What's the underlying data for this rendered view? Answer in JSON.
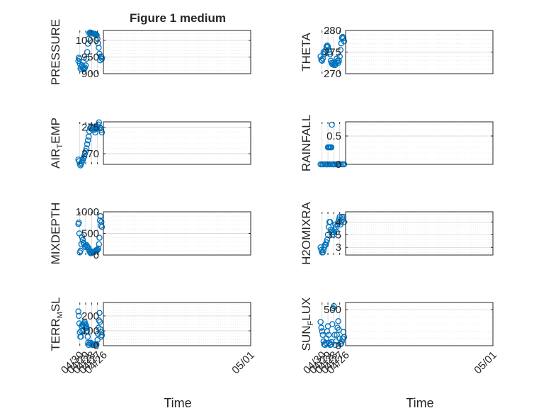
{
  "figure": {
    "title": "Figure 1 medium",
    "bottom_xlabel_left": "Time",
    "bottom_xlabel_right": "Time",
    "marker_color": "#0072BD",
    "date_ticks": [
      "04/26",
      "04/27",
      "04/28",
      "04/29",
      "04/30",
      "05/01"
    ]
  },
  "chart_data": [
    {
      "type": "scatter",
      "id": "pressure",
      "ylabel": "PRESSURE",
      "ylim": [
        900,
        1030
      ],
      "yticks": [
        900,
        950,
        1000
      ],
      "xlim": [
        "04/26",
        "05/01"
      ],
      "grid": true,
      "x": [
        "04/26 06:00",
        "04/26 08:00",
        "04/26 10:00",
        "04/26 13:00",
        "04/26 16:00",
        "04/26 19:00",
        "04/26 22:00",
        "04/27 00:00",
        "04/27 03:00",
        "04/27 06:00",
        "04/27 09:00",
        "04/27 12:00",
        "04/27 15:00",
        "04/27 18:00",
        "04/27 21:00",
        "04/28 00:00",
        "04/28 03:00",
        "04/28 06:00",
        "04/28 09:00",
        "04/28 12:00",
        "04/28 15:00",
        "04/28 18:00",
        "04/28 21:00",
        "04/29 00:00",
        "04/29 03:00",
        "04/29 06:00",
        "04/29 09:00",
        "04/29 12:00",
        "04/29 15:00",
        "04/29 18:00",
        "04/29 21:00",
        "04/30 00:00",
        "04/30 02:00",
        "04/30 04:00",
        "04/30 06:00"
      ],
      "y": [
        945,
        950,
        952,
        940,
        960,
        978,
        992,
        1005,
        1015,
        1018,
        1019,
        1020,
        1020,
        1021,
        1021,
        1022,
        1023,
        1024,
        1022,
        1005,
        990,
        965,
        945,
        925,
        918,
        915,
        913,
        918,
        925,
        920,
        915,
        930,
        944,
        948,
        938
      ]
    },
    {
      "type": "scatter",
      "id": "theta",
      "ylabel": "THETA",
      "ylim": [
        270,
        280
      ],
      "yticks": [
        270,
        275,
        280
      ],
      "xlim": [
        "04/26",
        "05/01"
      ],
      "grid": true,
      "x": [
        "04/26 06:00",
        "04/26 09:00",
        "04/26 12:00",
        "04/26 15:00",
        "04/26 18:00",
        "04/26 21:00",
        "04/27 00:00",
        "04/27 03:00",
        "04/27 06:00",
        "04/27 09:00",
        "04/27 12:00",
        "04/27 15:00",
        "04/27 18:00",
        "04/27 21:00",
        "04/28 00:00",
        "04/28 03:00",
        "04/28 06:00",
        "04/28 09:00",
        "04/28 12:00",
        "04/28 15:00",
        "04/28 18:00",
        "04/28 21:00",
        "04/29 00:00",
        "04/29 03:00",
        "04/29 06:00",
        "04/29 09:00",
        "04/29 12:00",
        "04/29 15:00",
        "04/29 18:00",
        "04/29 21:00",
        "04/30 00:00",
        "04/30 03:00",
        "04/30 06:00"
      ],
      "y": [
        277.5,
        278.2,
        278.5,
        278.3,
        277.0,
        275.5,
        274.0,
        273.0,
        272.5,
        273.0,
        273.5,
        272.5,
        272.0,
        272.2,
        272.0,
        272.5,
        272.2,
        272.5,
        273.0,
        274.5,
        275.0,
        275.5,
        276.3,
        276.5,
        276.2,
        275.5,
        275.0,
        274.5,
        275.0,
        273.5,
        273.0,
        273.2,
        274.0
      ]
    },
    {
      "type": "scatter",
      "id": "air_temp",
      "ylabel": "AIR_TEMP",
      "ylim": [
        268,
        276
      ],
      "yticks": [
        270,
        275
      ],
      "xlim": [
        "04/26",
        "05/01"
      ],
      "grid": true,
      "x": [
        "04/26 06:00",
        "04/26 09:00",
        "04/26 12:00",
        "04/26 15:00",
        "04/26 18:00",
        "04/26 21:00",
        "04/27 00:00",
        "04/27 03:00",
        "04/27 06:00",
        "04/27 09:00",
        "04/27 12:00",
        "04/27 15:00",
        "04/27 18:00",
        "04/27 21:00",
        "04/28 00:00",
        "04/28 03:00",
        "04/28 06:00",
        "04/28 09:00",
        "04/28 12:00",
        "04/28 15:00",
        "04/28 18:00",
        "04/28 21:00",
        "04/29 00:00",
        "04/29 03:00",
        "04/29 06:00",
        "04/29 09:00",
        "04/29 12:00",
        "04/29 15:00",
        "04/29 18:00",
        "04/29 21:00",
        "04/30 00:00",
        "04/30 03:00",
        "04/30 06:00"
      ],
      "y": [
        274.0,
        274.5,
        274.8,
        275.0,
        275.9,
        275.5,
        275.0,
        274.8,
        274.7,
        274.0,
        274.5,
        275.0,
        274.8,
        274.5,
        275.0,
        275.0,
        274.8,
        274.2,
        273.2,
        272.5,
        271.8,
        271.0,
        270.5,
        270.0,
        269.5,
        269.2,
        268.8,
        268.5,
        268.2,
        267.8,
        268.0,
        268.6,
        268.9
      ]
    },
    {
      "type": "scatter",
      "id": "rainfall",
      "ylabel": "RAINFALL",
      "ylim": [
        0,
        0.75
      ],
      "yticks": [
        0,
        0.5
      ],
      "xlim": [
        "04/26",
        "05/01"
      ],
      "grid": true,
      "x": [
        "04/26 06:00",
        "04/26 12:00",
        "04/26 18:00",
        "04/27 00:00",
        "04/27 06:00",
        "04/27 12:00",
        "04/27 18:00",
        "04/28 00:00",
        "04/28 03:00",
        "04/28 06:00",
        "04/28 08:00",
        "04/28 10:00",
        "04/28 12:00",
        "04/28 14:00",
        "04/28 16:00",
        "04/28 18:00",
        "04/28 20:00",
        "04/28 22:00",
        "04/29 00:00",
        "04/29 02:00",
        "04/29 04:00",
        "04/29 08:00",
        "04/29 14:00",
        "04/29 20:00",
        "04/30 00:00",
        "04/30 06:00"
      ],
      "y": [
        0,
        0,
        0,
        0,
        0,
        0,
        0,
        0,
        0,
        0,
        0.7,
        0.3,
        0.3,
        0.3,
        0,
        0.3,
        0,
        0.3,
        0.3,
        0,
        0,
        0,
        0,
        0,
        0,
        0
      ]
    },
    {
      "type": "scatter",
      "id": "mixdepth",
      "ylabel": "MIXDEPTH",
      "ylim": [
        0,
        1000
      ],
      "yticks": [
        0,
        500,
        1000
      ],
      "xlim": [
        "04/26",
        "05/01"
      ],
      "grid": true,
      "x": [
        "04/26 06:00",
        "04/26 08:00",
        "04/26 10:00",
        "04/26 12:00",
        "04/26 14:00",
        "04/26 16:00",
        "04/26 18:00",
        "04/26 21:00",
        "04/27 00:00",
        "04/27 03:00",
        "04/27 06:00",
        "04/27 09:00",
        "04/27 12:00",
        "04/27 15:00",
        "04/27 18:00",
        "04/27 21:00",
        "04/28 00:00",
        "04/28 03:00",
        "04/28 06:00",
        "04/28 09:00",
        "04/28 12:00",
        "04/28 15:00",
        "04/28 18:00",
        "04/28 21:00",
        "04/29 00:00",
        "04/29 03:00",
        "04/29 06:00",
        "04/29 09:00",
        "04/29 12:00",
        "04/29 15:00",
        "04/29 18:00",
        "04/29 21:00",
        "04/30 00:00",
        "04/30 02:00",
        "04/30 04:00",
        "04/30 06:00"
      ],
      "y": [
        650,
        760,
        680,
        900,
        800,
        400,
        250,
        150,
        120,
        100,
        110,
        90,
        80,
        60,
        70,
        80,
        50,
        40,
        60,
        90,
        150,
        180,
        200,
        230,
        180,
        200,
        250,
        280,
        350,
        420,
        250,
        100,
        60,
        500,
        750,
        720
      ]
    },
    {
      "type": "scatter",
      "id": "h2omixra",
      "ylabel": "H2OMIXRA",
      "ylim": [
        2.7,
        4.4
      ],
      "yticks": [
        3,
        3.5,
        4
      ],
      "xlim": [
        "04/26",
        "05/01"
      ],
      "grid": true,
      "x": [
        "04/26 06:00",
        "04/26 09:00",
        "04/26 12:00",
        "04/26 15:00",
        "04/26 18:00",
        "04/26 21:00",
        "04/27 00:00",
        "04/27 03:00",
        "04/27 06:00",
        "04/27 09:00",
        "04/27 12:00",
        "04/27 15:00",
        "04/27 18:00",
        "04/27 21:00",
        "04/28 00:00",
        "04/28 03:00",
        "04/28 06:00",
        "04/28 09:00",
        "04/28 12:00",
        "04/28 15:00",
        "04/28 18:00",
        "04/28 21:00",
        "04/29 00:00",
        "04/29 03:00",
        "04/29 06:00",
        "04/29 09:00",
        "04/29 12:00",
        "04/29 15:00",
        "04/29 18:00",
        "04/29 21:00",
        "04/30 00:00",
        "04/30 03:00",
        "04/30 06:00"
      ],
      "y": [
        4.0,
        4.2,
        4.1,
        4.2,
        4.0,
        3.9,
        4.2,
        4.1,
        4.0,
        3.9,
        3.6,
        3.8,
        3.9,
        3.7,
        3.5,
        3.6,
        3.5,
        3.6,
        3.7,
        4.0,
        4.0,
        3.8,
        3.5,
        3.3,
        3.2,
        3.1,
        3.1,
        3.0,
        2.9,
        2.8,
        2.8,
        2.9,
        3.0
      ]
    },
    {
      "type": "scatter",
      "id": "terr_msl",
      "ylabel": "TERR_MSL",
      "ylim": [
        0,
        290
      ],
      "yticks": [
        0,
        100,
        200
      ],
      "xlim": [
        "04/26",
        "05/01"
      ],
      "grid": true,
      "x": [
        "04/26 06:00",
        "04/26 08:00",
        "04/26 10:00",
        "04/26 12:00",
        "04/26 14:00",
        "04/26 16:00",
        "04/26 18:00",
        "04/26 20:00",
        "04/26 22:00",
        "04/27 00:00",
        "04/27 04:00",
        "04/27 08:00",
        "04/27 12:00",
        "04/27 16:00",
        "04/27 20:00",
        "04/28 00:00",
        "04/28 04:00",
        "04/28 08:00",
        "04/28 12:00",
        "04/28 14:00",
        "04/28 16:00",
        "04/28 18:00",
        "04/28 20:00",
        "04/28 22:00",
        "04/29 00:00",
        "04/29 02:00",
        "04/29 04:00",
        "04/29 06:00",
        "04/29 08:00",
        "04/29 10:00",
        "04/29 12:00",
        "04/29 14:00",
        "04/29 16:00",
        "04/29 18:00",
        "04/29 20:00",
        "04/29 22:00",
        "04/30 00:00",
        "04/30 02:00",
        "04/30 04:00",
        "04/30 06:00"
      ],
      "y": [
        70,
        90,
        60,
        110,
        160,
        220,
        170,
        120,
        80,
        40,
        10,
        5,
        5,
        10,
        5,
        10,
        20,
        15,
        5,
        20,
        60,
        100,
        120,
        130,
        140,
        120,
        160,
        150,
        130,
        100,
        140,
        140,
        130,
        100,
        60,
        60,
        90,
        150,
        200,
        230
      ]
    },
    {
      "type": "scatter",
      "id": "sun_flux",
      "ylabel": "SUN_FLUX",
      "ylim": [
        0,
        600
      ],
      "yticks": [
        0,
        500
      ],
      "xlim": [
        "04/26",
        "05/01"
      ],
      "grid": true,
      "x": [
        "04/26 06:00",
        "04/26 09:00",
        "04/26 12:00",
        "04/26 15:00",
        "04/26 18:00",
        "04/26 21:00",
        "04/27 00:00",
        "04/27 03:00",
        "04/27 06:00",
        "04/27 09:00",
        "04/27 12:00",
        "04/27 15:00",
        "04/27 18:00",
        "04/27 21:00",
        "04/28 00:00",
        "04/28 03:00",
        "04/28 06:00",
        "04/28 09:00",
        "04/28 12:00",
        "04/28 15:00",
        "04/28 18:00",
        "04/28 21:00",
        "04/29 00:00",
        "04/29 03:00",
        "04/29 06:00",
        "04/29 09:00",
        "04/29 12:00",
        "04/29 15:00",
        "04/29 18:00",
        "04/29 21:00",
        "04/30 00:00",
        "04/30 03:00",
        "04/30 06:00"
      ],
      "y": [
        120,
        190,
        100,
        60,
        30,
        20,
        100,
        220,
        340,
        250,
        150,
        60,
        10,
        150,
        550,
        520,
        300,
        50,
        20,
        10,
        40,
        150,
        270,
        200,
        100,
        40,
        10,
        20,
        60,
        150,
        200,
        250,
        330
      ]
    }
  ]
}
